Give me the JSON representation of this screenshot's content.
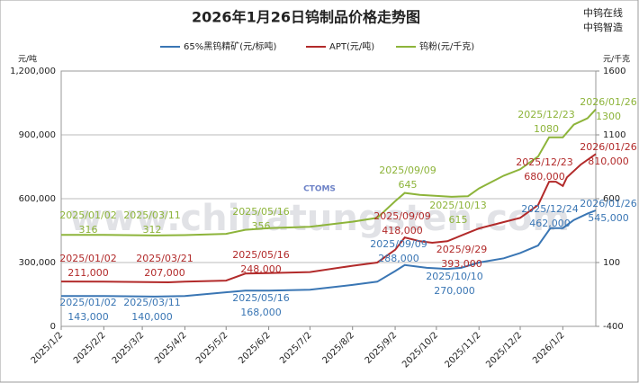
{
  "chart_data": {
    "type": "line",
    "title": "2026年1月26日钨制品价格走势图",
    "logo": [
      "中钨在线",
      "中钨智造"
    ],
    "watermark": "www.chinatungsten.com",
    "watermark_logo": "CTOMS",
    "y_label": "元/吨",
    "y2_label": "元/千克",
    "xlim": [
      "2025/1/2",
      "2026/1/26"
    ],
    "xticks": [
      "2025/1/2",
      "2025/2/2",
      "2025/3/2",
      "2025/4/2",
      "2025/5/2",
      "2025/6/2",
      "2025/7/2",
      "2025/8/2",
      "2025/9/2",
      "2025/10/2",
      "2025/11/2",
      "2025/12/2",
      "2026/1/2"
    ],
    "ylim": [
      0,
      1200000
    ],
    "yticks": [
      0,
      {
        "value": 300000,
        "label": "300,000"
      },
      {
        "value": 600000,
        "label": "600,000"
      },
      {
        "value": 900000,
        "label": "900,000"
      },
      {
        "value": 1200000,
        "label": "1,200,000"
      }
    ],
    "y2lim": [
      -400,
      1600
    ],
    "y2ticks": [
      -400,
      100,
      600,
      1100,
      1600
    ],
    "grid": true,
    "legend": "top",
    "series": [
      {
        "name": "65%黑钨精矿(元/标吨)",
        "color": "#3a76b4",
        "axis": "y",
        "x": [
          "2025/1/2",
          "2025/2/2",
          "2025/3/11",
          "2025/4/2",
          "2025/5/16",
          "2025/6/2",
          "2025/7/2",
          "2025/8/2",
          "2025/8/20",
          "2025/9/2",
          "2025/9/9",
          "2025/9/25",
          "2025/10/10",
          "2025/10/20",
          "2025/11/2",
          "2025/11/20",
          "2025/12/2",
          "2025/12/15",
          "2025/12/24",
          "2026/1/2",
          "2026/1/10",
          "2026/1/20",
          "2026/1/26"
        ],
        "values": [
          143000,
          143000,
          140000,
          143000,
          168000,
          168000,
          172000,
          195000,
          210000,
          260000,
          288000,
          275000,
          270000,
          275000,
          300000,
          320000,
          345000,
          380000,
          462000,
          462000,
          500000,
          530000,
          545000
        ]
      },
      {
        "name": "APT(元/吨)",
        "color": "#b22a2a",
        "axis": "y",
        "x": [
          "2025/1/2",
          "2025/2/2",
          "2025/3/21",
          "2025/4/2",
          "2025/5/2",
          "2025/5/16",
          "2025/6/2",
          "2025/7/2",
          "2025/8/2",
          "2025/8/20",
          "2025/9/2",
          "2025/9/9",
          "2025/9/20",
          "2025/9/29",
          "2025/10/10",
          "2025/10/25",
          "2025/11/2",
          "2025/11/20",
          "2025/12/2",
          "2025/12/15",
          "2025/12/23",
          "2025/12/28",
          "2026/1/2",
          "2026/1/5",
          "2026/1/15",
          "2026/1/26"
        ],
        "values": [
          211000,
          210000,
          207000,
          210000,
          215000,
          248000,
          250000,
          255000,
          285000,
          300000,
          360000,
          418000,
          400000,
          393000,
          400000,
          440000,
          460000,
          490000,
          510000,
          570000,
          680000,
          680000,
          660000,
          700000,
          760000,
          810000
        ]
      },
      {
        "name": "钨粉(元/千克)",
        "color": "#8db43a",
        "axis": "y2",
        "x": [
          "2025/1/2",
          "2025/2/2",
          "2025/3/11",
          "2025/4/2",
          "2025/5/2",
          "2025/5/16",
          "2025/6/2",
          "2025/7/2",
          "2025/8/2",
          "2025/8/20",
          "2025/9/2",
          "2025/9/9",
          "2025/9/20",
          "2025/10/13",
          "2025/10/25",
          "2025/11/2",
          "2025/11/20",
          "2025/12/2",
          "2025/12/15",
          "2025/12/23",
          "2026/1/2",
          "2026/1/10",
          "2026/1/20",
          "2026/1/26"
        ],
        "values": [
          316,
          316,
          312,
          315,
          325,
          356,
          370,
          380,
          420,
          450,
          580,
          645,
          630,
          615,
          620,
          680,
          780,
          830,
          930,
          1080,
          1080,
          1180,
          1230,
          1300
        ]
      }
    ],
    "annotations": [
      {
        "series": 0,
        "date": "2025/01/02",
        "value": 143000,
        "label": "143,000"
      },
      {
        "series": 0,
        "date": "2025/03/11",
        "value": 140000,
        "label": "140,000"
      },
      {
        "series": 0,
        "date": "2025/05/16",
        "value": 168000,
        "label": "168,000"
      },
      {
        "series": 0,
        "date": "2025/09/09",
        "value": 288000,
        "label": "288,000"
      },
      {
        "series": 0,
        "date": "2025/10/10",
        "value": 270000,
        "label": "270,000"
      },
      {
        "series": 0,
        "date": "2025/12/24",
        "value": 462000,
        "label": "462,000"
      },
      {
        "series": 0,
        "date": "2026/01/26",
        "value": 545000,
        "label": "545,000"
      },
      {
        "series": 1,
        "date": "2025/01/02",
        "value": 211000,
        "label": "211,000"
      },
      {
        "series": 1,
        "date": "2025/03/21",
        "value": 207000,
        "label": "207,000"
      },
      {
        "series": 1,
        "date": "2025/05/16",
        "value": 248000,
        "label": "248,000"
      },
      {
        "series": 1,
        "date": "2025/09/09",
        "value": 418000,
        "label": "418,000"
      },
      {
        "series": 1,
        "date": "2025/9/29",
        "value": 393000,
        "label": "393,000"
      },
      {
        "series": 1,
        "date": "2025/12/23",
        "value": 680000,
        "label": "680,000"
      },
      {
        "series": 1,
        "date": "2026/01/26",
        "value": 810000,
        "label": "810,000"
      },
      {
        "series": 2,
        "date": "2025/01/02",
        "value": 316
      },
      {
        "series": 2,
        "date": "2025/03/11",
        "value": 312
      },
      {
        "series": 2,
        "date": "2025/05/16",
        "value": 356
      },
      {
        "series": 2,
        "date": "2025/09/09",
        "value": 645
      },
      {
        "series": 2,
        "date": "2025/10/13",
        "value": 615
      },
      {
        "series": 2,
        "date": "2025/12/23",
        "value": 1080
      },
      {
        "series": 2,
        "date": "2026/01/26",
        "value": 1300
      }
    ]
  }
}
